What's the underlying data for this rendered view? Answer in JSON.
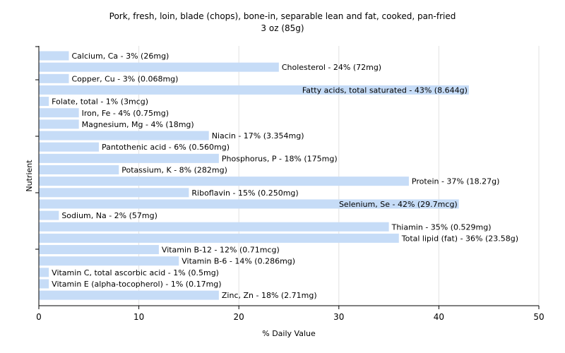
{
  "chart_data": {
    "type": "bar",
    "orientation": "horizontal",
    "title": "Pork, fresh, loin, blade (chops), bone-in, separable lean and fat, cooked, pan-fried",
    "subtitle": "3 oz (85g)",
    "xlabel": "% Daily Value",
    "ylabel": "Nutrient",
    "xlim": [
      0,
      50
    ],
    "xticks": [
      0,
      10,
      20,
      30,
      40,
      50
    ],
    "grid": true,
    "bar_color": "#c6dcf7",
    "categories": [
      "Calcium, Ca",
      "Cholesterol",
      "Copper, Cu",
      "Fatty acids, total saturated",
      "Folate, total",
      "Iron, Fe",
      "Magnesium, Mg",
      "Niacin",
      "Pantothenic acid",
      "Phosphorus, P",
      "Potassium, K",
      "Protein",
      "Riboflavin",
      "Selenium, Se",
      "Sodium, Na",
      "Thiamin",
      "Total lipid (fat)",
      "Vitamin B-12",
      "Vitamin B-6",
      "Vitamin C, total ascorbic acid",
      "Vitamin E (alpha-tocopherol)",
      "Zinc, Zn"
    ],
    "values": [
      3,
      24,
      3,
      43,
      1,
      4,
      4,
      17,
      6,
      18,
      8,
      37,
      15,
      42,
      2,
      35,
      36,
      12,
      14,
      1,
      1,
      18
    ],
    "labels": [
      "Calcium, Ca - 3% (26mg)",
      "Cholesterol - 24% (72mg)",
      "Copper, Cu - 3% (0.068mg)",
      "Fatty acids, total saturated - 43% (8.644g)",
      "Folate, total - 1% (3mcg)",
      "Iron, Fe - 4% (0.75mg)",
      "Magnesium, Mg - 4% (18mg)",
      "Niacin - 17% (3.354mg)",
      "Pantothenic acid - 6% (0.560mg)",
      "Phosphorus, P - 18% (175mg)",
      "Potassium, K - 8% (282mg)",
      "Protein - 37% (18.27g)",
      "Riboflavin - 15% (0.250mg)",
      "Selenium, Se - 42% (29.7mcg)",
      "Sodium, Na - 2% (57mg)",
      "Thiamin - 35% (0.529mg)",
      "Total lipid (fat) - 36% (23.58g)",
      "Vitamin B-12 - 12% (0.71mcg)",
      "Vitamin B-6 - 14% (0.286mg)",
      "Vitamin C, total ascorbic acid - 1% (0.5mg)",
      "Vitamin E (alpha-tocopherol) - 1% (0.17mg)",
      "Zinc, Zn - 18% (2.71mg)"
    ]
  }
}
